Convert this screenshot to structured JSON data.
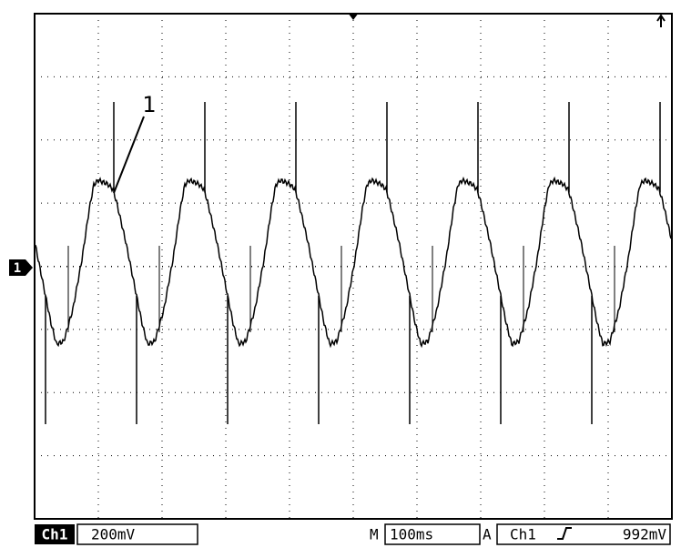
{
  "annotation": "1",
  "channel_marker": "1",
  "status_bar": {
    "channel": "Ch1",
    "volts_per_div": "200mV",
    "timebase_prefix": "M",
    "time_per_div": "100ms",
    "trigger_mode": "A",
    "trigger_source": "Ch1",
    "trigger_level": "992mV"
  }
}
